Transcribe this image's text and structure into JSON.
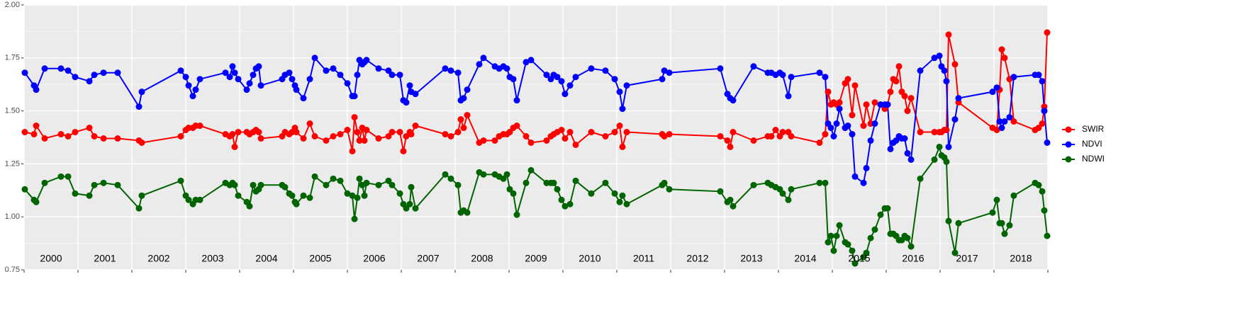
{
  "chart_data": {
    "type": "line",
    "x": [
      2000.013,
      2000.184,
      2000.224,
      2000.382,
      2000.684,
      2000.816,
      2000.947,
      2001.211,
      2001.303,
      2001.474,
      2001.737,
      2002.132,
      2002.184,
      2002.908,
      2003.0,
      2003.053,
      2003.132,
      2003.184,
      2003.263,
      2003.737,
      2003.816,
      2003.868,
      2003.908,
      2003.974,
      2004.132,
      2004.184,
      2004.25,
      2004.303,
      2004.355,
      2004.395,
      2004.789,
      2004.842,
      2004.921,
      2004.974,
      2005.026,
      2005.053,
      2005.184,
      2005.303,
      2005.395,
      2005.605,
      2005.737,
      2005.868,
      2006.0,
      2006.092,
      2006.132,
      2006.184,
      2006.224,
      2006.276,
      2006.316,
      2006.355,
      2006.579,
      2006.763,
      2006.829,
      2006.974,
      2007.039,
      2007.092,
      2007.158,
      2007.184,
      2007.263,
      2007.816,
      2007.921,
      2008.053,
      2008.105,
      2008.158,
      2008.224,
      2008.447,
      2008.526,
      2008.737,
      2008.816,
      2008.895,
      2008.961,
      2009.013,
      2009.079,
      2009.145,
      2009.316,
      2009.408,
      2009.697,
      2009.776,
      2009.829,
      2009.895,
      2009.974,
      2010.039,
      2010.132,
      2010.237,
      2010.526,
      2010.789,
      2010.961,
      2011.053,
      2011.105,
      2011.184,
      2011.842,
      2011.882,
      2011.974,
      2012.921,
      2013.053,
      2013.105,
      2013.158,
      2013.539,
      2013.803,
      2013.868,
      2013.947,
      2014.026,
      2014.079,
      2014.184,
      2014.237,
      2014.763,
      2014.868,
      2014.921,
      2014.974,
      2015.026,
      2015.079,
      2015.132,
      2015.237,
      2015.289,
      2015.368,
      2015.421,
      2015.579,
      2015.632,
      2015.711,
      2015.789,
      2015.895,
      2015.974,
      2016.026,
      2016.079,
      2016.132,
      2016.184,
      2016.237,
      2016.289,
      2016.342,
      2016.395,
      2016.461,
      2016.632,
      2016.895,
      2016.987,
      2017.026,
      2017.079,
      2017.118,
      2017.158,
      2017.276,
      2017.342,
      2017.974,
      2018.053,
      2018.105,
      2018.145,
      2018.197,
      2018.289,
      2018.368,
      2018.763,
      2018.829,
      2018.895,
      2018.934,
      2018.987
    ],
    "series": [
      {
        "name": "SWIR",
        "color": "#ff0000",
        "values": [
          1.4,
          1.39,
          1.43,
          1.37,
          1.39,
          1.38,
          1.4,
          1.42,
          1.38,
          1.37,
          1.37,
          1.36,
          1.35,
          1.38,
          1.41,
          1.42,
          1.42,
          1.43,
          1.43,
          1.39,
          1.38,
          1.39,
          1.33,
          1.4,
          1.4,
          1.39,
          1.4,
          1.41,
          1.4,
          1.37,
          1.38,
          1.4,
          1.39,
          1.4,
          1.42,
          1.4,
          1.37,
          1.44,
          1.38,
          1.36,
          1.38,
          1.39,
          1.41,
          1.31,
          1.47,
          1.4,
          1.36,
          1.42,
          1.36,
          1.41,
          1.37,
          1.38,
          1.4,
          1.4,
          1.31,
          1.38,
          1.4,
          1.39,
          1.43,
          1.39,
          1.38,
          1.4,
          1.46,
          1.42,
          1.48,
          1.35,
          1.36,
          1.36,
          1.38,
          1.39,
          1.39,
          1.4,
          1.42,
          1.43,
          1.38,
          1.35,
          1.36,
          1.38,
          1.39,
          1.4,
          1.41,
          1.37,
          1.4,
          1.34,
          1.4,
          1.38,
          1.4,
          1.43,
          1.33,
          1.4,
          1.39,
          1.38,
          1.39,
          1.38,
          1.36,
          1.33,
          1.4,
          1.36,
          1.38,
          1.38,
          1.41,
          1.38,
          1.4,
          1.4,
          1.38,
          1.35,
          1.39,
          1.59,
          1.53,
          1.54,
          1.53,
          1.54,
          1.63,
          1.65,
          1.48,
          1.62,
          1.43,
          1.53,
          1.44,
          1.54,
          1.53,
          1.51,
          1.53,
          1.59,
          1.65,
          1.64,
          1.71,
          1.59,
          1.57,
          1.5,
          1.56,
          1.4,
          1.4,
          1.4,
          1.4,
          1.41,
          1.41,
          1.86,
          1.72,
          1.54,
          1.42,
          1.41,
          1.6,
          1.79,
          1.75,
          1.65,
          1.45,
          1.41,
          1.42,
          1.44,
          1.52,
          1.87
        ]
      },
      {
        "name": "NDVI",
        "color": "#0000ff",
        "values": [
          1.68,
          1.62,
          1.6,
          1.7,
          1.7,
          1.69,
          1.66,
          1.64,
          1.67,
          1.68,
          1.68,
          1.52,
          1.59,
          1.69,
          1.66,
          1.62,
          1.57,
          1.6,
          1.65,
          1.68,
          1.66,
          1.71,
          1.68,
          1.65,
          1.6,
          1.63,
          1.67,
          1.7,
          1.71,
          1.62,
          1.65,
          1.67,
          1.68,
          1.65,
          1.62,
          1.6,
          1.56,
          1.65,
          1.75,
          1.69,
          1.7,
          1.67,
          1.63,
          1.57,
          1.57,
          1.67,
          1.74,
          1.72,
          1.73,
          1.74,
          1.7,
          1.69,
          1.67,
          1.67,
          1.55,
          1.54,
          1.62,
          1.59,
          1.58,
          1.7,
          1.69,
          1.68,
          1.55,
          1.56,
          1.6,
          1.72,
          1.75,
          1.71,
          1.7,
          1.71,
          1.7,
          1.66,
          1.65,
          1.55,
          1.73,
          1.74,
          1.67,
          1.65,
          1.67,
          1.66,
          1.64,
          1.58,
          1.62,
          1.66,
          1.7,
          1.69,
          1.65,
          1.59,
          1.51,
          1.62,
          1.65,
          1.69,
          1.68,
          1.7,
          1.58,
          1.56,
          1.55,
          1.71,
          1.68,
          1.68,
          1.67,
          1.68,
          1.67,
          1.57,
          1.66,
          1.68,
          1.66,
          1.44,
          1.42,
          1.38,
          1.44,
          1.51,
          1.42,
          1.43,
          1.39,
          1.19,
          1.16,
          1.23,
          1.36,
          1.44,
          1.53,
          1.53,
          1.53,
          1.32,
          1.35,
          1.36,
          1.38,
          1.37,
          1.37,
          1.3,
          1.27,
          1.69,
          1.75,
          1.76,
          1.71,
          1.69,
          1.64,
          1.33,
          1.46,
          1.56,
          1.59,
          1.61,
          1.45,
          1.42,
          1.45,
          1.47,
          1.66,
          1.67,
          1.67,
          1.64,
          1.5,
          1.35
        ]
      },
      {
        "name": "NDWI",
        "color": "#006400",
        "values": [
          1.13,
          1.08,
          1.07,
          1.16,
          1.19,
          1.19,
          1.11,
          1.1,
          1.15,
          1.16,
          1.15,
          1.04,
          1.1,
          1.17,
          1.1,
          1.08,
          1.06,
          1.08,
          1.08,
          1.16,
          1.15,
          1.16,
          1.15,
          1.1,
          1.07,
          1.05,
          1.15,
          1.12,
          1.13,
          1.15,
          1.15,
          1.14,
          1.11,
          1.1,
          1.07,
          1.06,
          1.1,
          1.09,
          1.19,
          1.15,
          1.18,
          1.17,
          1.11,
          1.1,
          0.99,
          1.09,
          1.18,
          1.15,
          1.1,
          1.16,
          1.15,
          1.17,
          1.15,
          1.11,
          1.06,
          1.04,
          1.06,
          1.14,
          1.04,
          1.2,
          1.18,
          1.15,
          1.02,
          1.03,
          1.02,
          1.21,
          1.2,
          1.2,
          1.19,
          1.18,
          1.2,
          1.13,
          1.11,
          1.01,
          1.16,
          1.22,
          1.16,
          1.16,
          1.16,
          1.13,
          1.08,
          1.05,
          1.06,
          1.17,
          1.11,
          1.16,
          1.11,
          1.07,
          1.1,
          1.06,
          1.15,
          1.16,
          1.13,
          1.12,
          1.07,
          1.08,
          1.05,
          1.15,
          1.16,
          1.15,
          1.14,
          1.13,
          1.11,
          1.08,
          1.13,
          1.16,
          1.16,
          0.88,
          0.91,
          0.84,
          0.91,
          0.96,
          0.88,
          0.87,
          0.84,
          0.78,
          0.81,
          0.83,
          0.9,
          0.94,
          1.01,
          1.04,
          1.04,
          0.92,
          0.92,
          0.91,
          0.89,
          0.89,
          0.91,
          0.9,
          0.86,
          1.18,
          1.27,
          1.33,
          1.29,
          1.28,
          1.26,
          0.98,
          0.83,
          0.97,
          1.02,
          1.08,
          0.97,
          0.97,
          0.92,
          0.96,
          1.1,
          1.16,
          1.15,
          1.12,
          1.03,
          0.91
        ]
      }
    ],
    "xlim": [
      2000,
      2019
    ],
    "xgrid": [
      2000,
      2001,
      2002,
      2003,
      2004,
      2005,
      2006,
      2007,
      2008,
      2009,
      2010,
      2011,
      2012,
      2013,
      2014,
      2015,
      2016,
      2017,
      2018,
      2019
    ],
    "xticks": [
      {
        "value": 2000.5,
        "label": "2000"
      },
      {
        "value": 2001.5,
        "label": "2001"
      },
      {
        "value": 2002.5,
        "label": "2002"
      },
      {
        "value": 2003.5,
        "label": "2003"
      },
      {
        "value": 2004.5,
        "label": "2004"
      },
      {
        "value": 2005.5,
        "label": "2005"
      },
      {
        "value": 2006.5,
        "label": "2006"
      },
      {
        "value": 2007.5,
        "label": "2007"
      },
      {
        "value": 2008.5,
        "label": "2008"
      },
      {
        "value": 2009.5,
        "label": "2009"
      },
      {
        "value": 2010.5,
        "label": "2010"
      },
      {
        "value": 2011.5,
        "label": "2011"
      },
      {
        "value": 2012.5,
        "label": "2012"
      },
      {
        "value": 2013.5,
        "label": "2013"
      },
      {
        "value": 2014.5,
        "label": "2014"
      },
      {
        "value": 2015.5,
        "label": "2015"
      },
      {
        "value": 2016.5,
        "label": "2016"
      },
      {
        "value": 2017.5,
        "label": "2017"
      },
      {
        "value": 2018.5,
        "label": "2018"
      }
    ],
    "ylim": [
      0.75,
      2.0
    ],
    "yticks": [
      {
        "value": 0.75,
        "label": "0.75"
      },
      {
        "value": 1,
        "label": "1.00"
      },
      {
        "value": 1.25,
        "label": "1.25"
      },
      {
        "value": 1.5,
        "label": "1.50"
      },
      {
        "value": 1.75,
        "label": "1.75"
      },
      {
        "value": 2,
        "label": "2.00"
      }
    ],
    "grid": true,
    "legend": "right"
  }
}
